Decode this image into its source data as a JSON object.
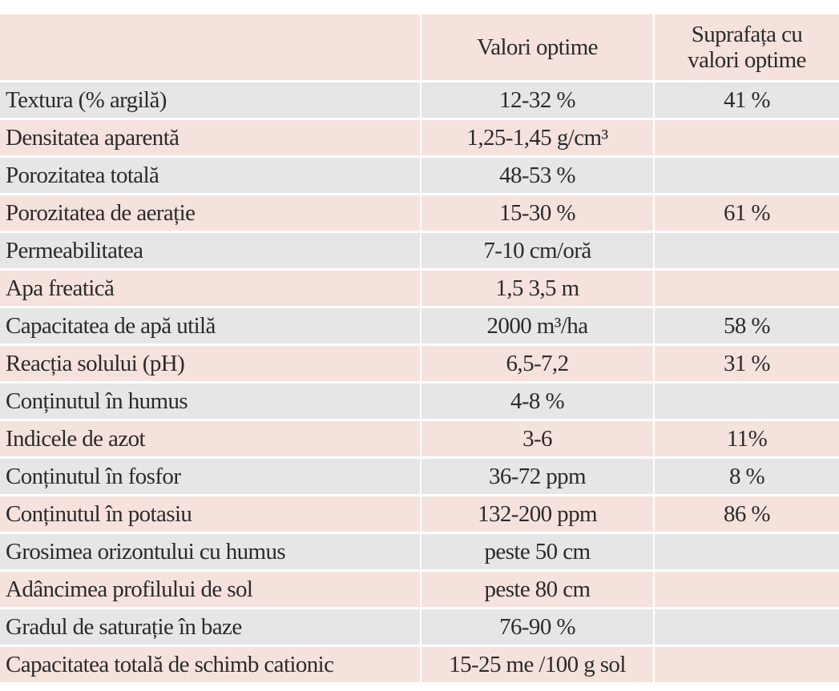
{
  "table": {
    "header": [
      null,
      "Valori optime",
      "Suprafața cu valori optime"
    ],
    "rows": [
      [
        "Textura (% argilă)",
        "12-32 %",
        "41 %"
      ],
      [
        "Densitatea aparentă",
        "1,25-1,45 g/cm³",
        null
      ],
      [
        "Porozitatea totală",
        "48-53 %",
        null
      ],
      [
        "Porozitatea de aerație",
        "15-30 %",
        "61 %"
      ],
      [
        "Permeabilitatea",
        "7-10 cm/oră",
        null
      ],
      [
        "Apa freatică",
        "1,5 3,5 m",
        null
      ],
      [
        "Capacitatea de apă utilă",
        "2000 m³/ha",
        "58 %"
      ],
      [
        "Reacția solului (pH)",
        "6,5-7,2",
        "31 %"
      ],
      [
        "Conținutul în humus",
        "4-8 %",
        null
      ],
      [
        "Indicele de azot",
        "3-6",
        "11%"
      ],
      [
        "Conținutul în fosfor",
        "36-72 ppm",
        "8 %"
      ],
      [
        "Conținutul în potasiu",
        "132-200 ppm",
        "86 %"
      ],
      [
        "Grosimea orizontului cu humus",
        "peste 50 cm",
        null
      ],
      [
        "Adâncimea profilului de sol",
        "peste 80 cm",
        null
      ],
      [
        "Gradul de saturație în baze",
        "76-90 %",
        null
      ],
      [
        "Capacitatea totală de schimb cationic",
        "15-25 me /100 g sol",
        null
      ]
    ]
  }
}
